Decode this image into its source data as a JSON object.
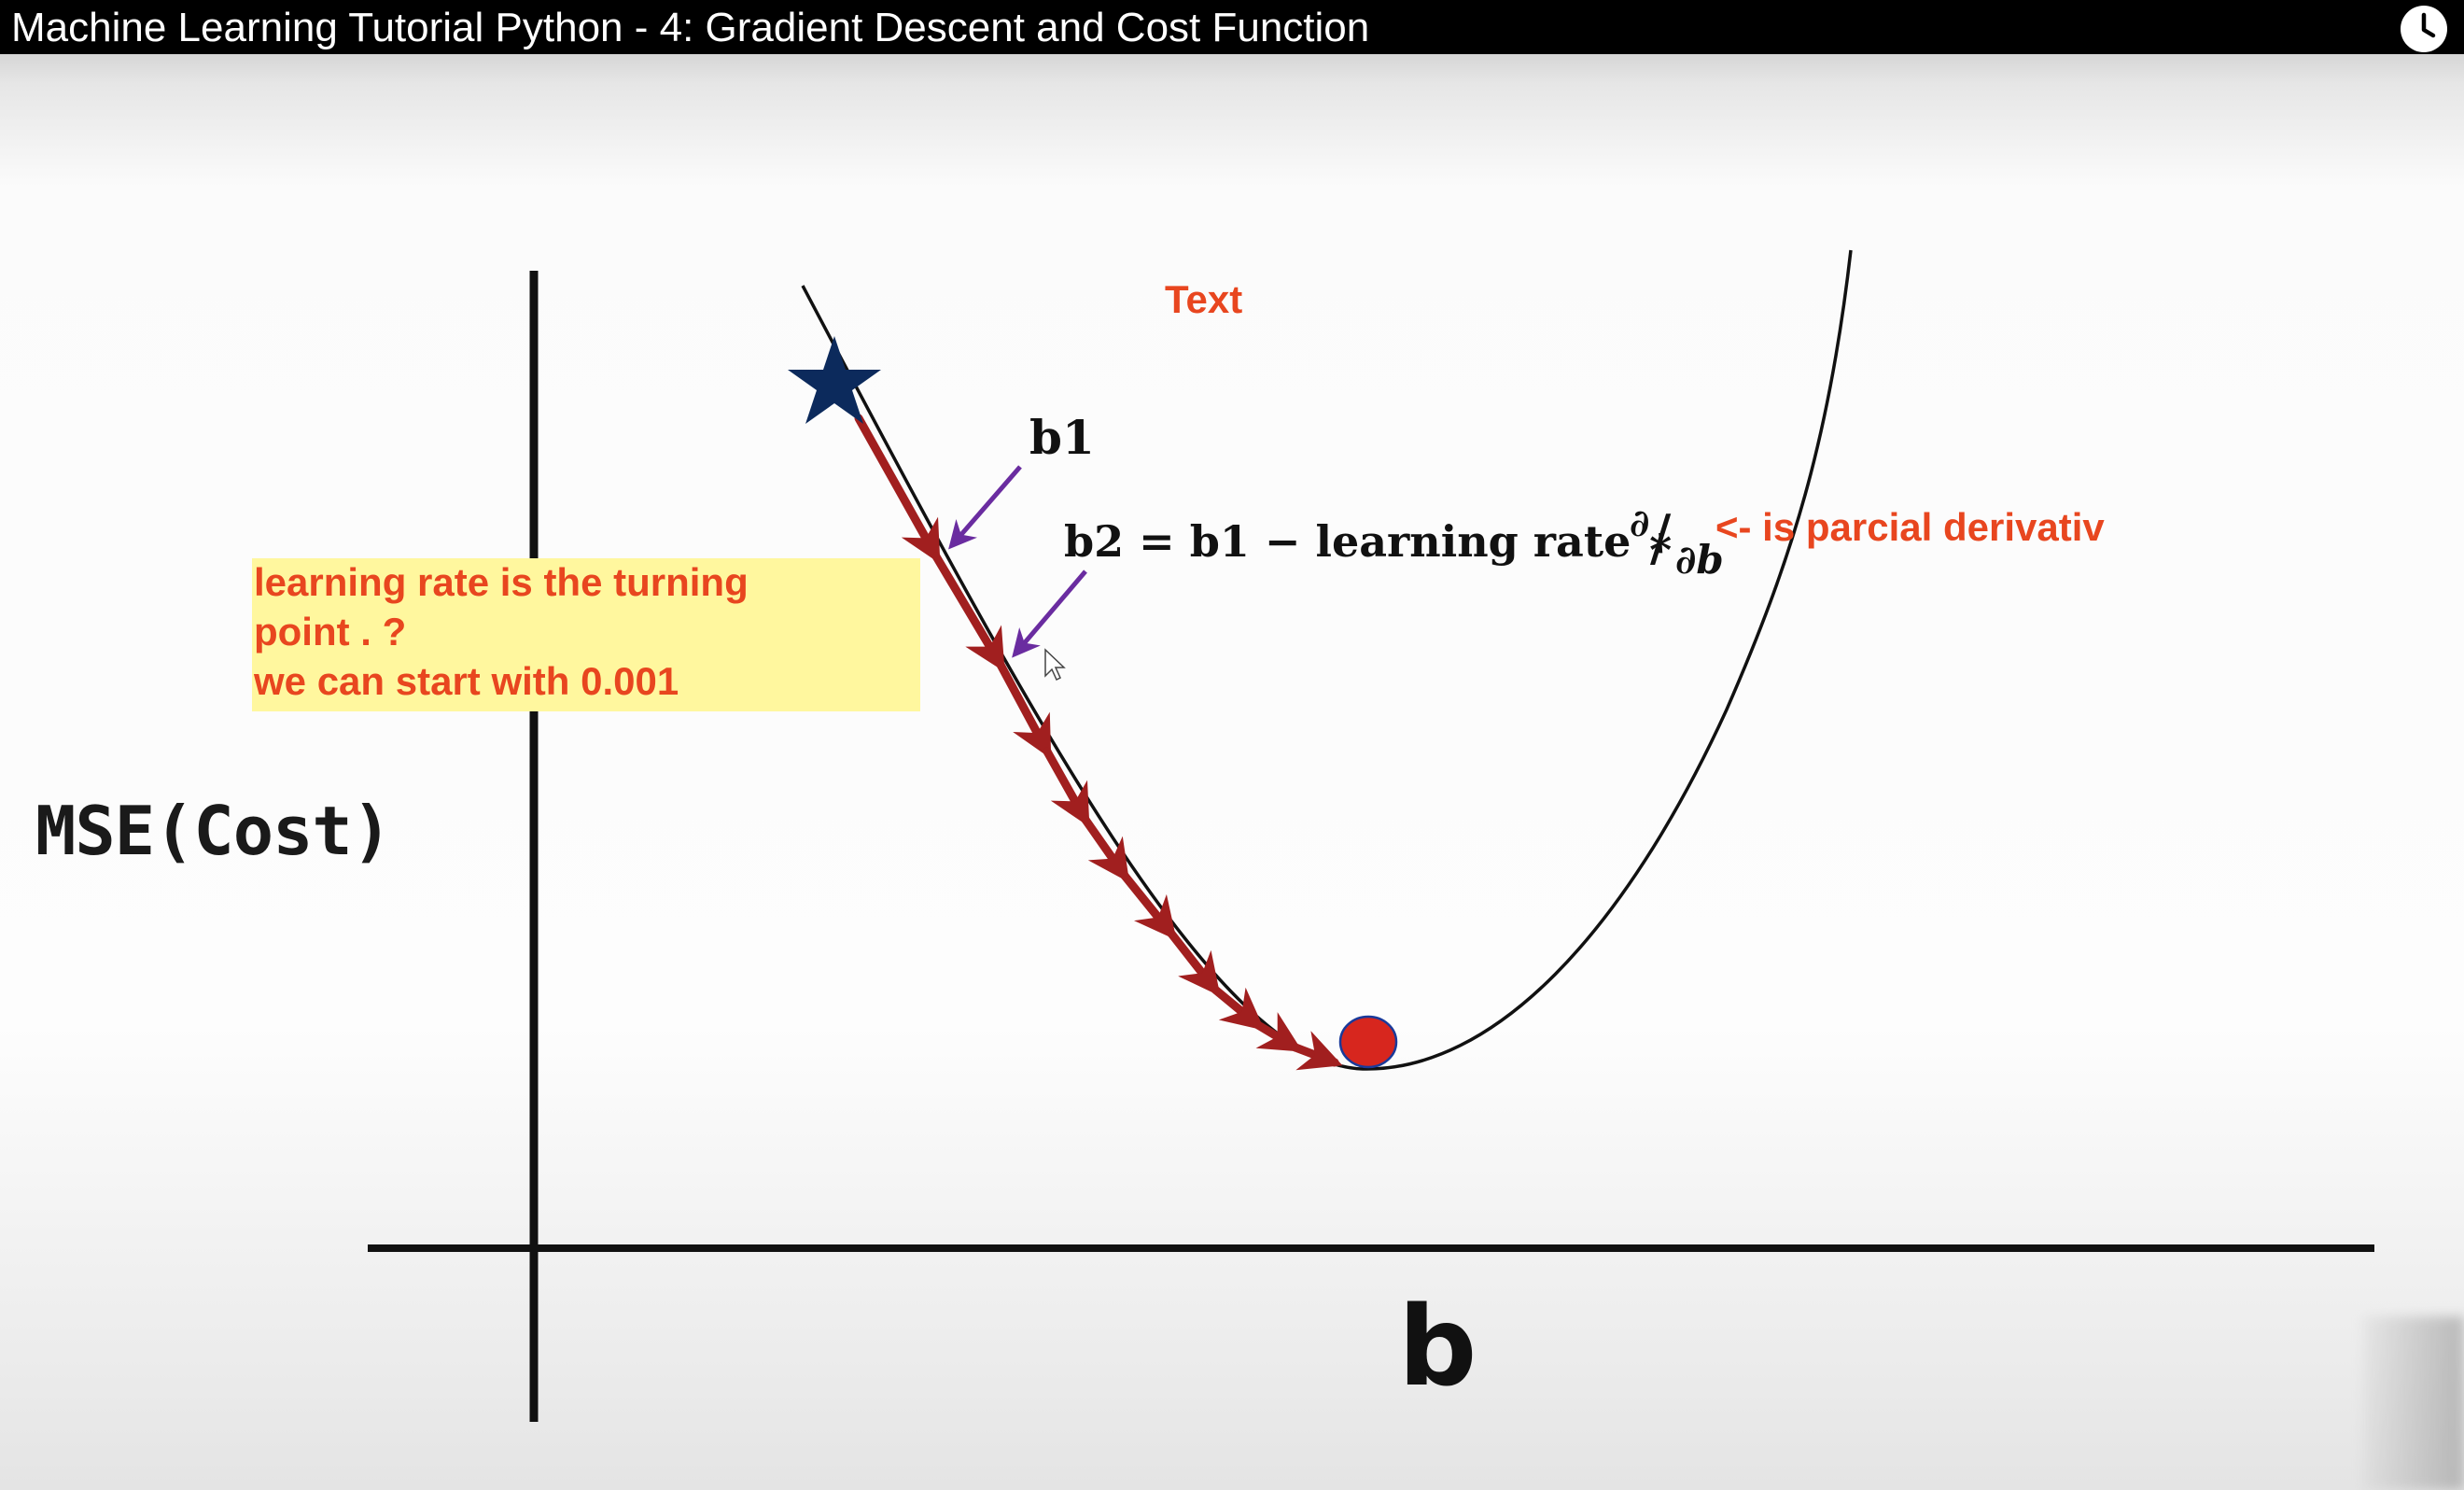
{
  "video": {
    "title": "Machine Learning Tutorial Python - 4: Gradient Descent and Cost Function",
    "watch_later_icon": "clock-icon"
  },
  "slide": {
    "y_axis_label": "MSE(Cost)",
    "x_axis_label": "b",
    "b1_label": "b1",
    "formula": "b2 = b1 − learning rate ∗",
    "partial_numerator": "∂",
    "partial_slash": "/",
    "partial_denominator": "∂b",
    "overlay_text_label": "Text",
    "derivative_note": "<- is parcial derivativ",
    "note_lines": [
      "learning rate is the turning",
      "point . ?",
      "we can start with 0.001"
    ],
    "colors": {
      "curve": "#111111",
      "steps": "#a11f1f",
      "star": "#0c2a5c",
      "minimum_dot": "#d7261e",
      "pointer_arrows": "#6a2ca0",
      "note_background": "#fff79e",
      "note_text": "#e8461f"
    },
    "icons": [
      "star-icon",
      "minimum-dot-icon",
      "mouse-cursor-icon"
    ]
  }
}
